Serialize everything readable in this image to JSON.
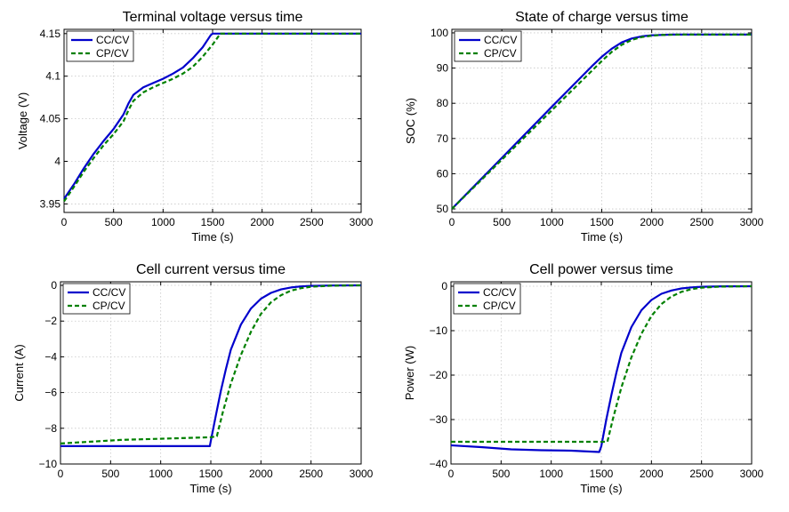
{
  "chart_data": [
    {
      "type": "line",
      "title": "Terminal voltage versus time",
      "xlabel": "Time (s)",
      "ylabel": "Voltage (V)",
      "xlim": [
        0,
        3000
      ],
      "ylim": [
        3.94,
        4.155
      ],
      "xticks": [
        0,
        500,
        1000,
        1500,
        2000,
        2500,
        3000
      ],
      "yticks": [
        3.95,
        4,
        4.05,
        4.1,
        4.15
      ],
      "ytick_labels": [
        "3.95",
        "4",
        "4.05",
        "4.1",
        "4.15"
      ],
      "grid": true,
      "legend": "top-left",
      "series": [
        {
          "name": "CC/CV",
          "color": "#0000cc",
          "style": "solid",
          "x": [
            0,
            100,
            200,
            300,
            400,
            500,
            600,
            650,
            700,
            800,
            900,
            1000,
            1100,
            1200,
            1300,
            1400,
            1480,
            1500,
            2000,
            3000
          ],
          "y": [
            3.956,
            3.973,
            3.992,
            4.009,
            4.024,
            4.038,
            4.055,
            4.068,
            4.078,
            4.087,
            4.092,
            4.097,
            4.103,
            4.11,
            4.121,
            4.134,
            4.148,
            4.15,
            4.15,
            4.15
          ]
        },
        {
          "name": "CP/CV",
          "color": "#008000",
          "style": "dashed",
          "x": [
            0,
            100,
            200,
            300,
            400,
            500,
            600,
            650,
            700,
            800,
            900,
            1000,
            1100,
            1200,
            1300,
            1400,
            1500,
            1560,
            1580,
            2000,
            3000
          ],
          "y": [
            3.953,
            3.97,
            3.988,
            4.004,
            4.019,
            4.032,
            4.047,
            4.06,
            4.071,
            4.081,
            4.087,
            4.092,
            4.097,
            4.103,
            4.111,
            4.123,
            4.137,
            4.147,
            4.15,
            4.15,
            4.15
          ]
        }
      ]
    },
    {
      "type": "line",
      "title": "State of charge versus time",
      "xlabel": "Time (s)",
      "ylabel": "SOC (%)",
      "xlim": [
        0,
        3000
      ],
      "ylim": [
        49,
        101
      ],
      "xticks": [
        0,
        500,
        1000,
        1500,
        2000,
        2500,
        3000
      ],
      "yticks": [
        50,
        60,
        70,
        80,
        90,
        100
      ],
      "ytick_labels": [
        "50",
        "60",
        "70",
        "80",
        "90",
        "100"
      ],
      "grid": true,
      "legend": "top-left",
      "series": [
        {
          "name": "CC/CV",
          "color": "#0000cc",
          "style": "solid",
          "x": [
            0,
            500,
            1000,
            1400,
            1500,
            1600,
            1700,
            1800,
            1900,
            2000,
            2200,
            3000
          ],
          "y": [
            50,
            64.5,
            79,
            90.5,
            93.2,
            95.5,
            97.3,
            98.4,
            99.0,
            99.3,
            99.5,
            99.5
          ]
        },
        {
          "name": "CP/CV",
          "color": "#008000",
          "style": "dashed",
          "x": [
            0,
            500,
            1000,
            1500,
            1600,
            1700,
            1800,
            1900,
            2000,
            2100,
            2300,
            3000
          ],
          "y": [
            50,
            64,
            78,
            92.0,
            94.6,
            96.6,
            98.0,
            98.8,
            99.2,
            99.4,
            99.5,
            99.5
          ]
        }
      ]
    },
    {
      "type": "line",
      "title": "Cell current versus time",
      "xlabel": "Time (s)",
      "ylabel": "Current (A)",
      "xlim": [
        0,
        3000
      ],
      "ylim": [
        -10,
        0.2
      ],
      "xticks": [
        0,
        500,
        1000,
        1500,
        2000,
        2500,
        3000
      ],
      "yticks": [
        -10,
        -8,
        -6,
        -4,
        -2,
        0
      ],
      "ytick_labels": [
        "−10",
        "−8",
        "−6",
        "−4",
        "−2",
        "0"
      ],
      "grid": true,
      "legend": "top-left",
      "series": [
        {
          "name": "CC/CV",
          "color": "#0000cc",
          "style": "solid",
          "x": [
            0,
            1490,
            1500,
            1550,
            1600,
            1650,
            1700,
            1800,
            1900,
            2000,
            2100,
            2200,
            2300,
            2400,
            2500,
            2700,
            3000
          ],
          "y": [
            -9.0,
            -9.0,
            -8.7,
            -7.3,
            -5.9,
            -4.7,
            -3.6,
            -2.2,
            -1.3,
            -0.75,
            -0.42,
            -0.23,
            -0.12,
            -0.06,
            -0.03,
            -0.01,
            0
          ]
        },
        {
          "name": "CP/CV",
          "color": "#008000",
          "style": "dashed",
          "x": [
            0,
            300,
            600,
            900,
            1200,
            1500,
            1560,
            1580,
            1620,
            1700,
            1800,
            1900,
            2000,
            2100,
            2200,
            2300,
            2400,
            2500,
            2700,
            3000
          ],
          "y": [
            -8.85,
            -8.75,
            -8.65,
            -8.6,
            -8.55,
            -8.5,
            -8.45,
            -8.0,
            -7.1,
            -5.5,
            -3.9,
            -2.6,
            -1.6,
            -0.95,
            -0.55,
            -0.3,
            -0.16,
            -0.08,
            -0.02,
            0
          ]
        }
      ]
    },
    {
      "type": "line",
      "title": "Cell power versus time",
      "xlabel": "Time (s)",
      "ylabel": "Power (W)",
      "xlim": [
        0,
        3000
      ],
      "ylim": [
        -40,
        1
      ],
      "xticks": [
        0,
        500,
        1000,
        1500,
        2000,
        2500,
        3000
      ],
      "yticks": [
        -40,
        -30,
        -20,
        -10,
        0
      ],
      "ytick_labels": [
        "−40",
        "−30",
        "−20",
        "−10",
        "0"
      ],
      "grid": true,
      "legend": "top-left",
      "series": [
        {
          "name": "CC/CV",
          "color": "#0000cc",
          "style": "solid",
          "x": [
            0,
            300,
            600,
            900,
            1200,
            1480,
            1500,
            1550,
            1600,
            1650,
            1700,
            1800,
            1900,
            2000,
            2100,
            2200,
            2300,
            2400,
            2500,
            2700,
            3000
          ],
          "y": [
            -35.8,
            -36.2,
            -36.7,
            -36.9,
            -37.0,
            -37.3,
            -36.0,
            -30.0,
            -24.5,
            -19.5,
            -15.0,
            -9.2,
            -5.4,
            -3.1,
            -1.7,
            -0.95,
            -0.5,
            -0.25,
            -0.12,
            -0.03,
            0
          ]
        },
        {
          "name": "CP/CV",
          "color": "#008000",
          "style": "dashed",
          "x": [
            0,
            1560,
            1580,
            1620,
            1700,
            1800,
            1900,
            2000,
            2100,
            2200,
            2300,
            2400,
            2500,
            2700,
            3000
          ],
          "y": [
            -35.0,
            -35.0,
            -33.2,
            -29.5,
            -22.8,
            -16.0,
            -10.7,
            -6.7,
            -4.0,
            -2.3,
            -1.25,
            -0.65,
            -0.33,
            -0.08,
            0
          ]
        }
      ]
    }
  ]
}
